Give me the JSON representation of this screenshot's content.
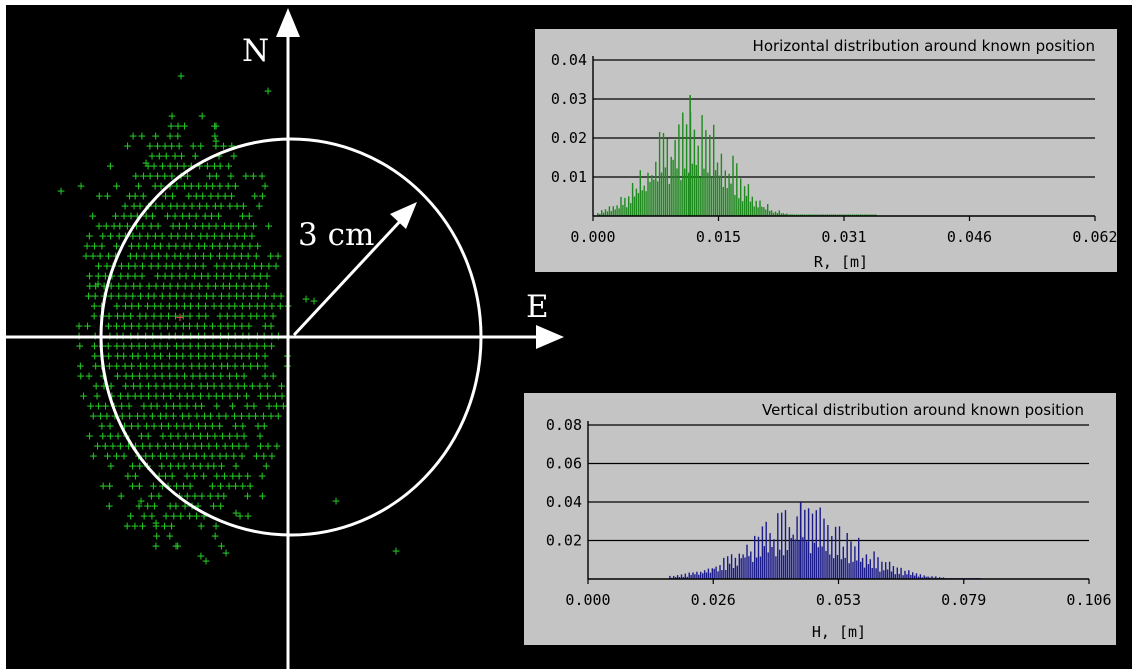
{
  "scatter": {
    "north_label": "N",
    "east_label": "E",
    "radius_label": "3 cm",
    "point_color": "#22c022",
    "mean_color": "#d04040",
    "axis_color": "#ffffff"
  },
  "chart_data": [
    {
      "type": "bar",
      "title": "Horizontal distribution around known position",
      "xlabel": "R, [m]",
      "ylabel": "",
      "xlim": [
        0,
        0.062
      ],
      "ylim": [
        0,
        0.04
      ],
      "xticks": [
        "0.000",
        "0.015",
        "0.031",
        "0.046",
        "0.062"
      ],
      "yticks": [
        "0.01",
        "0.02",
        "0.03",
        "0.04"
      ],
      "grid": true,
      "color": "#1c8a1c",
      "peak": {
        "x": 0.012,
        "y": 0.031
      },
      "x_range": [
        0.0005,
        0.035
      ],
      "spread": 0.0045
    },
    {
      "type": "bar",
      "title": "Vertical distribution around known position",
      "xlabel": "H, [m]",
      "ylabel": "",
      "xlim": [
        0,
        0.106
      ],
      "ylim": [
        0,
        0.08
      ],
      "xticks": [
        "0.000",
        "0.026",
        "0.053",
        "0.079",
        "0.106"
      ],
      "yticks": [
        "0.02",
        "0.04",
        "0.06",
        "0.08"
      ],
      "grid": true,
      "color": "#1a1a8a",
      "peak": {
        "x": 0.045,
        "y": 0.04
      },
      "x_range": [
        0.017,
        0.083
      ],
      "spread": 0.011
    }
  ]
}
